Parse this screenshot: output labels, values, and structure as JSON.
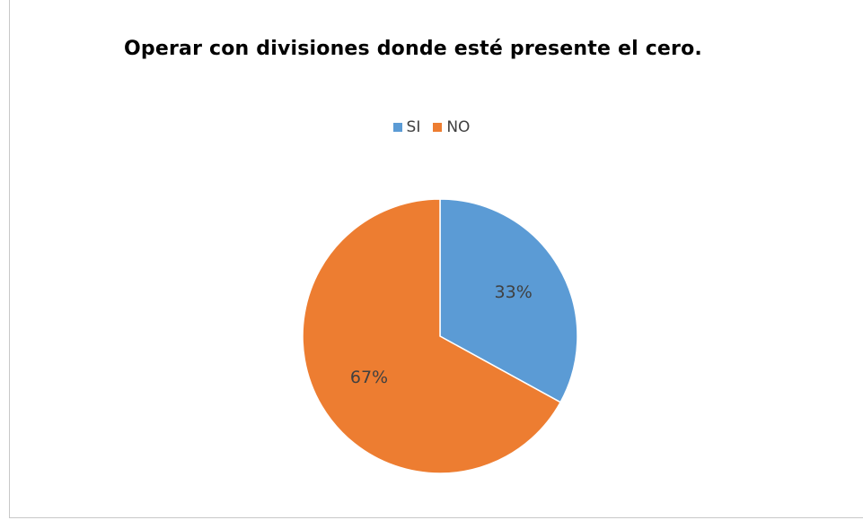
{
  "chart_data": {
    "type": "pie",
    "title": "Operar con divisiones donde esté presente el cero.",
    "categories": [
      "SI",
      "NO"
    ],
    "values": [
      33,
      67
    ],
    "data_labels": [
      "33%",
      "67%"
    ],
    "colors": [
      "#5b9bd5",
      "#ed7d31"
    ],
    "legend": {
      "placement": "top",
      "entries": [
        "SI",
        "NO"
      ]
    },
    "start_angle_deg": 0,
    "direction": "clockwise"
  }
}
